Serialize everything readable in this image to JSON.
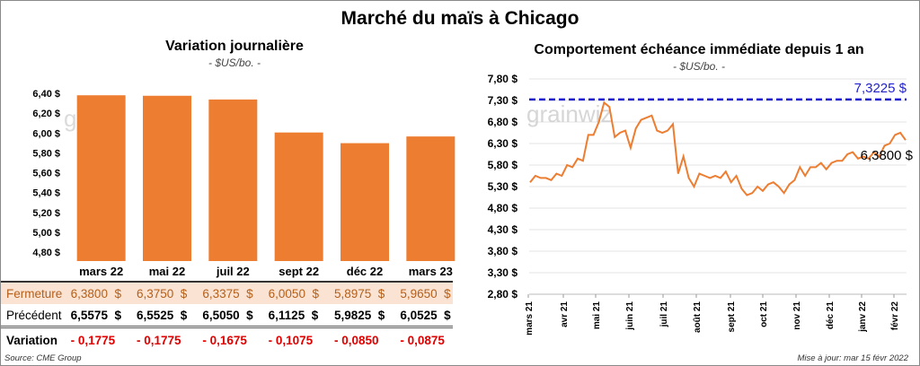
{
  "title": "Marché du maïs à Chicago",
  "chart_data": [
    {
      "type": "bar",
      "title": "Variation journalière",
      "subtitle": "- $US/bo. -",
      "categories": [
        "mars 22",
        "mai 22",
        "juil 22",
        "sept 22",
        "déc 22",
        "mars 23"
      ],
      "values": [
        6.38,
        6.375,
        6.3375,
        6.005,
        5.8975,
        5.965
      ],
      "ylim": [
        4.8,
        6.4
      ],
      "yticks": [
        "4,80 $",
        "5,00 $",
        "5,20 $",
        "5,40 $",
        "5,60 $",
        "5,80 $",
        "6,00 $",
        "6,20 $",
        "6,40 $"
      ],
      "color": "#ed7d31"
    },
    {
      "type": "line",
      "title": "Comportement échéance immédiate depuis 1 an",
      "subtitle": "- $US/bo. -",
      "ylim": [
        2.8,
        7.8
      ],
      "yticks": [
        "2,80 $",
        "3,30 $",
        "3,80 $",
        "4,30 $",
        "4,80 $",
        "5,30 $",
        "5,80 $",
        "6,30 $",
        "6,80 $",
        "7,30 $",
        "7,80 $"
      ],
      "xticks": [
        "mars 21",
        "avr 21",
        "mai 21",
        "juin 21",
        "juil 21",
        "août 21",
        "sept 21",
        "oct 21",
        "nov 21",
        "déc 21",
        "janv 22",
        "févr 22"
      ],
      "series": [
        {
          "name": "échéance immédiate",
          "color": "#ed7d31",
          "values": [
            5.4,
            5.55,
            5.5,
            5.5,
            5.45,
            5.6,
            5.55,
            5.8,
            5.75,
            5.95,
            5.9,
            6.5,
            6.5,
            6.8,
            7.25,
            7.15,
            6.45,
            6.55,
            6.6,
            6.2,
            6.65,
            6.85,
            6.9,
            6.95,
            6.6,
            6.55,
            6.6,
            6.75,
            5.6,
            6.0,
            5.5,
            5.3,
            5.6,
            5.55,
            5.5,
            5.55,
            5.5,
            5.65,
            5.4,
            5.55,
            5.25,
            5.1,
            5.15,
            5.3,
            5.2,
            5.35,
            5.4,
            5.3,
            5.15,
            5.35,
            5.45,
            5.75,
            5.55,
            5.75,
            5.75,
            5.85,
            5.7,
            5.85,
            5.9,
            5.9,
            6.05,
            6.1,
            5.95,
            6.0,
            5.95,
            6.1,
            6.0,
            6.25,
            6.3,
            6.5,
            6.55,
            6.38
          ]
        }
      ],
      "reference_line": {
        "value": 7.3225,
        "label": "7,3225 $",
        "color": "#1f1fcf"
      },
      "last_label": "6,3800 $"
    }
  ],
  "table": {
    "rows": [
      {
        "label": "Fermeture",
        "values": [
          "6,3800  $",
          "6,3750  $",
          "6,3375  $",
          "6,0050  $",
          "5,8975  $",
          "5,9650  $"
        ]
      },
      {
        "label": "Précédent",
        "values": [
          "6,5575  $",
          "6,5525  $",
          "6,5050  $",
          "6,1125  $",
          "5,9825  $",
          "6,0525  $"
        ]
      },
      {
        "label": "Variation",
        "values": [
          "- 0,1775",
          "- 0,1775",
          "- 0,1675",
          "- 0,1075",
          "- 0,0850",
          "- 0,0875"
        ]
      }
    ]
  },
  "watermark": "grainwiz",
  "source": "Source: CME Group",
  "updated": "Mise à jour: mar 15 févr 2022"
}
